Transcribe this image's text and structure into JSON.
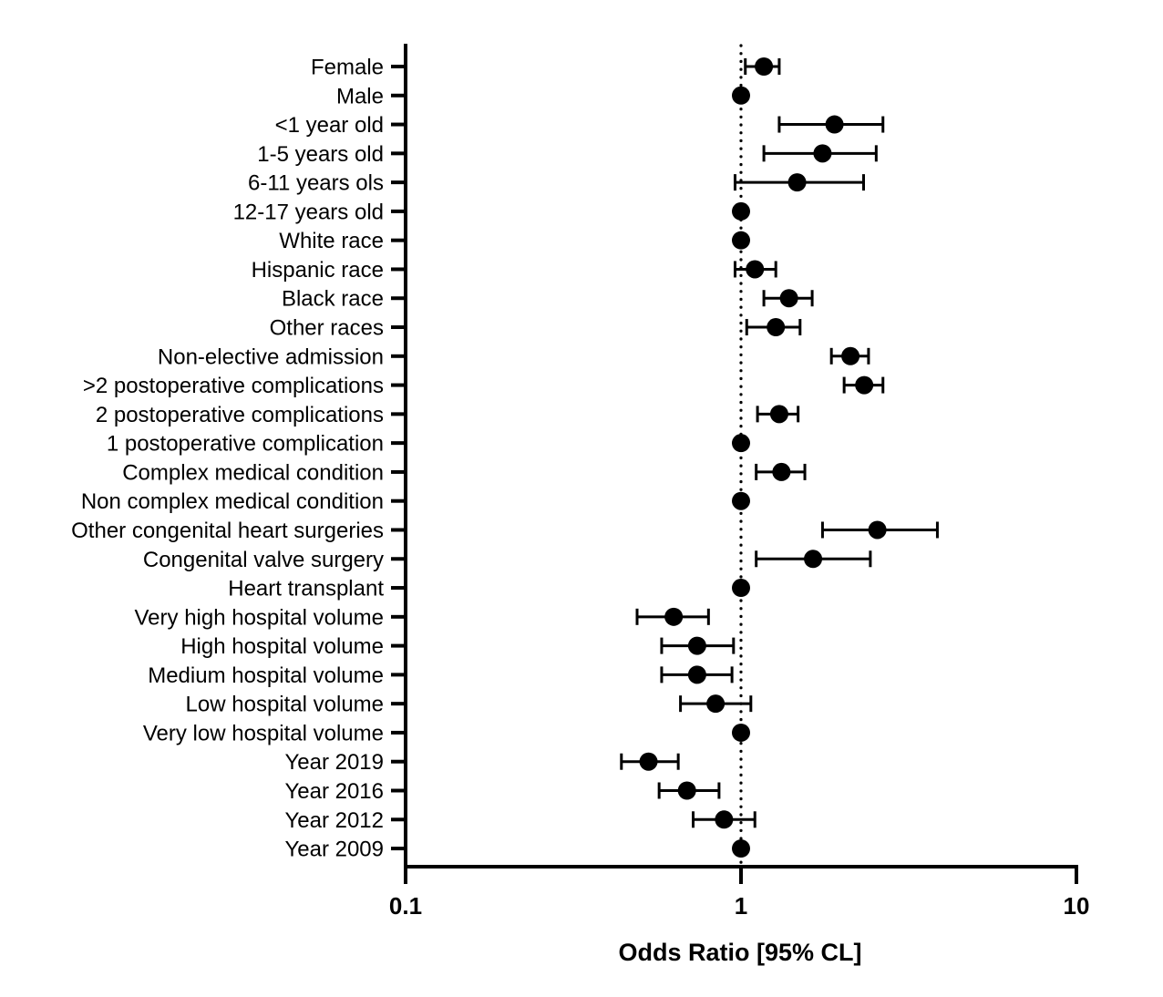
{
  "chart_data": {
    "type": "forest",
    "xlabel": "Odds Ratio [95% CL]",
    "x_scale": "log",
    "xlim": [
      0.1,
      10
    ],
    "x_ticks": [
      {
        "value": 0.1,
        "label": "0.1"
      },
      {
        "value": 1,
        "label": "1"
      },
      {
        "value": 10,
        "label": "10"
      }
    ],
    "reference_line": {
      "value": 1,
      "style": "dotted"
    },
    "grid": false,
    "point_color": "#000000",
    "rows": [
      {
        "label": "Female",
        "or": 1.17,
        "lower": 1.03,
        "upper": 1.3
      },
      {
        "label": "Male",
        "or": 1.0,
        "lower": null,
        "upper": null
      },
      {
        "label": "<1 year old",
        "or": 1.9,
        "lower": 1.3,
        "upper": 2.65
      },
      {
        "label": "1-5 years old",
        "or": 1.75,
        "lower": 1.17,
        "upper": 2.53
      },
      {
        "label": "6-11 years ols",
        "or": 1.47,
        "lower": 0.96,
        "upper": 2.32
      },
      {
        "label": "12-17 years old",
        "or": 1.0,
        "lower": null,
        "upper": null
      },
      {
        "label": "White race",
        "or": 1.0,
        "lower": null,
        "upper": null
      },
      {
        "label": "Hispanic race",
        "or": 1.1,
        "lower": 0.96,
        "upper": 1.27
      },
      {
        "label": "Black race",
        "or": 1.39,
        "lower": 1.17,
        "upper": 1.63
      },
      {
        "label": "Other races",
        "or": 1.27,
        "lower": 1.04,
        "upper": 1.5
      },
      {
        "label": "Non-elective admission",
        "or": 2.12,
        "lower": 1.86,
        "upper": 2.4
      },
      {
        "label": ">2 postoperative complications",
        "or": 2.33,
        "lower": 2.03,
        "upper": 2.65
      },
      {
        "label": "2 postoperative complications",
        "or": 1.3,
        "lower": 1.12,
        "upper": 1.48
      },
      {
        "label": "1 postoperative complication",
        "or": 1.0,
        "lower": null,
        "upper": null
      },
      {
        "label": "Complex medical condition",
        "or": 1.32,
        "lower": 1.11,
        "upper": 1.55
      },
      {
        "label": "Non complex medical condition",
        "or": 1.0,
        "lower": null,
        "upper": null
      },
      {
        "label": "Other congenital heart surgeries",
        "or": 2.55,
        "lower": 1.75,
        "upper": 3.85
      },
      {
        "label": "Congenital valve surgery",
        "or": 1.64,
        "lower": 1.11,
        "upper": 2.43
      },
      {
        "label": "Heart transplant",
        "or": 1.0,
        "lower": null,
        "upper": null
      },
      {
        "label": "Very high hospital volume",
        "or": 0.63,
        "lower": 0.49,
        "upper": 0.8
      },
      {
        "label": "High hospital volume",
        "or": 0.74,
        "lower": 0.58,
        "upper": 0.95
      },
      {
        "label": "Medium hospital volume",
        "or": 0.74,
        "lower": 0.58,
        "upper": 0.94
      },
      {
        "label": "Low hospital volume",
        "or": 0.84,
        "lower": 0.66,
        "upper": 1.07
      },
      {
        "label": "Very low hospital volume",
        "or": 1.0,
        "lower": null,
        "upper": null
      },
      {
        "label": "Year 2019",
        "or": 0.53,
        "lower": 0.44,
        "upper": 0.65
      },
      {
        "label": "Year 2016",
        "or": 0.69,
        "lower": 0.57,
        "upper": 0.86
      },
      {
        "label": "Year 2012",
        "or": 0.89,
        "lower": 0.72,
        "upper": 1.1
      },
      {
        "label": "Year 2009",
        "or": 1.0,
        "lower": null,
        "upper": null
      }
    ]
  }
}
